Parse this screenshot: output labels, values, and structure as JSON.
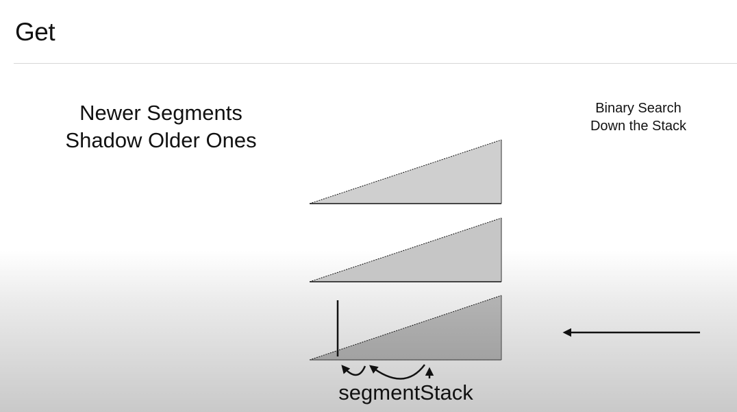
{
  "title": "Get",
  "captions": {
    "left_line1": "Newer Segments",
    "left_line2": "Shadow Older Ones",
    "right_line1": "Binary Search",
    "right_line2": "Down the Stack"
  },
  "stack_label": "segmentStack",
  "colors": {
    "segment_fill": "#cfcfcf",
    "segment_active_fill": "#a9a9a9",
    "stroke": "#111111"
  },
  "segments": [
    {
      "name": "segment-newest"
    },
    {
      "name": "segment-middle"
    },
    {
      "name": "segment-oldest",
      "active": true
    }
  ]
}
